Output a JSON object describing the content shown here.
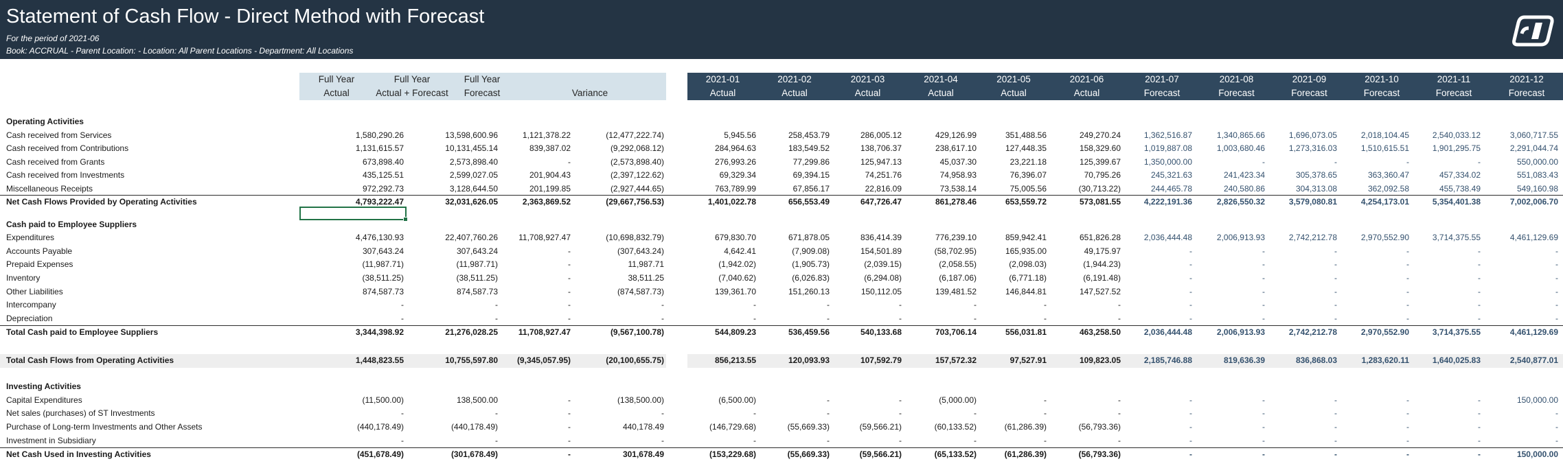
{
  "report": {
    "title": "Statement of Cash Flow - Direct Method with Forecast",
    "period_line": "For the period of 2021-06",
    "filter_line": "Book: ACCRUAL - Parent Location:  - Location: All Parent Locations - Department: All Locations",
    "logo_icon": "company-logo-icon"
  },
  "colors": {
    "banner": "#243444",
    "summary_header": "#d5e2ea",
    "month_header": "#30485e",
    "forecast_text": "#34516e"
  },
  "columns": [
    {
      "top": "Full Year",
      "bottom": "Actual",
      "kind": "summary"
    },
    {
      "top": "Full Year",
      "bottom": "Actual + Forecast",
      "kind": "summary"
    },
    {
      "top": "Full Year",
      "bottom": "Forecast",
      "kind": "summary"
    },
    {
      "top": "",
      "bottom": "Variance",
      "kind": "summary"
    },
    {
      "top": "2021-01",
      "bottom": "Actual",
      "kind": "month"
    },
    {
      "top": "2021-02",
      "bottom": "Actual",
      "kind": "month"
    },
    {
      "top": "2021-03",
      "bottom": "Actual",
      "kind": "month"
    },
    {
      "top": "2021-04",
      "bottom": "Actual",
      "kind": "month"
    },
    {
      "top": "2021-05",
      "bottom": "Actual",
      "kind": "month"
    },
    {
      "top": "2021-06",
      "bottom": "Actual",
      "kind": "month"
    },
    {
      "top": "2021-07",
      "bottom": "Forecast",
      "kind": "month"
    },
    {
      "top": "2021-08",
      "bottom": "Forecast",
      "kind": "month"
    },
    {
      "top": "2021-09",
      "bottom": "Forecast",
      "kind": "month"
    },
    {
      "top": "2021-10",
      "bottom": "Forecast",
      "kind": "month"
    },
    {
      "top": "2021-11",
      "bottom": "Forecast",
      "kind": "month"
    },
    {
      "top": "2021-12",
      "bottom": "Forecast",
      "kind": "month"
    }
  ],
  "rows": [
    {
      "type": "section",
      "label": "Operating Activities"
    },
    {
      "type": "data",
      "label": "Cash received from Services",
      "values": [
        "1,580,290.26",
        "13,598,600.96",
        "1,121,378.22",
        "(12,477,222.74)",
        "5,945.56",
        "258,453.79",
        "286,005.12",
        "429,126.99",
        "351,488.56",
        "249,270.24",
        "1,362,516.87",
        "1,340,865.66",
        "1,696,073.05",
        "2,018,104.45",
        "2,540,033.12",
        "3,060,717.55"
      ]
    },
    {
      "type": "data",
      "label": "Cash received from Contributions",
      "values": [
        "1,131,615.57",
        "10,131,455.14",
        "839,387.02",
        "(9,292,068.12)",
        "284,964.63",
        "183,549.52",
        "138,706.37",
        "238,617.10",
        "127,448.35",
        "158,329.60",
        "1,019,887.08",
        "1,003,680.46",
        "1,273,316.03",
        "1,510,615.51",
        "1,901,295.75",
        "2,291,044.74"
      ]
    },
    {
      "type": "data",
      "label": "Cash received from Grants",
      "values": [
        "673,898.40",
        "2,573,898.40",
        "-",
        "(2,573,898.40)",
        "276,993.26",
        "77,299.86",
        "125,947.13",
        "45,037.30",
        "23,221.18",
        "125,399.67",
        "1,350,000.00",
        "-",
        "-",
        "-",
        "-",
        "550,000.00"
      ]
    },
    {
      "type": "data",
      "label": "Cash received from Investments",
      "values": [
        "435,125.51",
        "2,599,027.05",
        "201,904.43",
        "(2,397,122.62)",
        "69,329.34",
        "69,394.15",
        "74,251.76",
        "74,958.93",
        "76,396.07",
        "70,795.26",
        "245,321.63",
        "241,423.34",
        "305,378.65",
        "363,360.47",
        "457,334.02",
        "551,083.43"
      ]
    },
    {
      "type": "data",
      "label": "Miscellaneous Receipts",
      "values": [
        "972,292.73",
        "3,128,644.50",
        "201,199.85",
        "(2,927,444.65)",
        "763,789.99",
        "67,856.17",
        "22,816.09",
        "73,538.14",
        "75,005.56",
        "(30,713.22)",
        "244,465.78",
        "240,580.86",
        "304,313.08",
        "362,092.58",
        "455,738.49",
        "549,160.98"
      ]
    },
    {
      "type": "total",
      "label": "Net Cash Flows Provided by Operating Activities",
      "values": [
        "4,793,222.47",
        "32,031,626.05",
        "2,363,869.52",
        "(29,667,756.53)",
        "1,401,022.78",
        "656,553.49",
        "647,726.47",
        "861,278.46",
        "653,559.72",
        "573,081.55",
        "4,222,191.36",
        "2,826,550.32",
        "3,579,080.81",
        "4,254,173.01",
        "5,354,401.38",
        "7,002,006.70"
      ]
    },
    {
      "type": "blank"
    },
    {
      "type": "section",
      "label": "Cash paid to Employee Suppliers"
    },
    {
      "type": "data",
      "label": "Expenditures",
      "values": [
        "4,476,130.93",
        "22,407,760.26",
        "11,708,927.47",
        "(10,698,832.79)",
        "679,830.70",
        "671,878.05",
        "836,414.39",
        "776,239.10",
        "859,942.41",
        "651,826.28",
        "2,036,444.48",
        "2,006,913.93",
        "2,742,212.78",
        "2,970,552.90",
        "3,714,375.55",
        "4,461,129.69"
      ]
    },
    {
      "type": "data",
      "label": "Accounts Payable",
      "values": [
        "307,643.24",
        "307,643.24",
        "-",
        "(307,643.24)",
        "4,642.41",
        "(7,909.08)",
        "154,501.89",
        "(58,702.95)",
        "165,935.00",
        "49,175.97",
        "-",
        "-",
        "-",
        "-",
        "-",
        "-"
      ]
    },
    {
      "type": "data",
      "label": "Prepaid Expenses",
      "values": [
        "(11,987.71)",
        "(11,987.71)",
        "-",
        "11,987.71",
        "(1,942.02)",
        "(1,905.73)",
        "(2,039.15)",
        "(2,058.55)",
        "(2,098.03)",
        "(1,944.23)",
        "-",
        "-",
        "-",
        "-",
        "-",
        "-"
      ]
    },
    {
      "type": "data",
      "label": "Inventory",
      "values": [
        "(38,511.25)",
        "(38,511.25)",
        "-",
        "38,511.25",
        "(7,040.62)",
        "(6,026.83)",
        "(6,294.08)",
        "(6,187.06)",
        "(6,771.18)",
        "(6,191.48)",
        "-",
        "-",
        "-",
        "-",
        "-",
        "-"
      ]
    },
    {
      "type": "data",
      "label": "Other Liabilities",
      "values": [
        "874,587.73",
        "874,587.73",
        "-",
        "(874,587.73)",
        "139,361.70",
        "151,260.13",
        "150,112.05",
        "139,481.52",
        "146,844.81",
        "147,527.52",
        "-",
        "-",
        "-",
        "-",
        "-",
        "-"
      ]
    },
    {
      "type": "data",
      "label": "Intercompany",
      "values": [
        "-",
        "-",
        "-",
        "-",
        "-",
        "-",
        "-",
        "-",
        "-",
        "-",
        "-",
        "-",
        "-",
        "-",
        "-",
        "-"
      ]
    },
    {
      "type": "data",
      "label": "Depreciation",
      "values": [
        "-",
        "-",
        "-",
        "-",
        "-",
        "-",
        "-",
        "-",
        "-",
        "-",
        "-",
        "-",
        "-",
        "-",
        "-",
        "-"
      ]
    },
    {
      "type": "total",
      "label": "Total Cash paid to Employee Suppliers",
      "values": [
        "3,344,398.92",
        "21,276,028.25",
        "11,708,927.47",
        "(9,567,100.78)",
        "544,809.23",
        "536,459.56",
        "540,133.68",
        "703,706.14",
        "556,031.81",
        "463,258.50",
        "2,036,444.48",
        "2,006,913.93",
        "2,742,212.78",
        "2,970,552.90",
        "3,714,375.55",
        "4,461,129.69"
      ]
    },
    {
      "type": "blank"
    },
    {
      "type": "grand",
      "label": "Total Cash Flows from Operating Activities",
      "values": [
        "1,448,823.55",
        "10,755,597.80",
        "(9,345,057.95)",
        "(20,100,655.75)",
        "856,213.55",
        "120,093.93",
        "107,592.79",
        "157,572.32",
        "97,527.91",
        "109,823.05",
        "2,185,746.88",
        "819,636.39",
        "836,868.03",
        "1,283,620.11",
        "1,640,025.83",
        "2,540,877.01"
      ]
    },
    {
      "type": "blank"
    },
    {
      "type": "section",
      "label": "Investing Activities"
    },
    {
      "type": "data",
      "label": "Capital Expenditures",
      "values": [
        "(11,500.00)",
        "138,500.00",
        "-",
        "(138,500.00)",
        "(6,500.00)",
        "-",
        "-",
        "(5,000.00)",
        "-",
        "-",
        "-",
        "-",
        "-",
        "-",
        "-",
        "150,000.00"
      ]
    },
    {
      "type": "data",
      "label": "Net sales (purchases) of ST Investments",
      "values": [
        "-",
        "-",
        "-",
        "-",
        "-",
        "-",
        "-",
        "-",
        "-",
        "-",
        "-",
        "-",
        "-",
        "-",
        "-",
        "-"
      ]
    },
    {
      "type": "data",
      "label": "Purchase of Long-term Investments and Other Assets",
      "values": [
        "(440,178.49)",
        "(440,178.49)",
        "-",
        "440,178.49",
        "(146,729.68)",
        "(55,669.33)",
        "(59,566.21)",
        "(60,133.52)",
        "(61,286.39)",
        "(56,793.36)",
        "-",
        "-",
        "-",
        "-",
        "-",
        "-"
      ]
    },
    {
      "type": "data",
      "label": "Investment in Subsidiary",
      "values": [
        "-",
        "-",
        "-",
        "-",
        "-",
        "-",
        "-",
        "-",
        "-",
        "-",
        "-",
        "-",
        "-",
        "-",
        "-",
        "-"
      ]
    },
    {
      "type": "total",
      "label": "Net Cash Used in Investing Activities",
      "values": [
        "(451,678.49)",
        "(301,678.49)",
        "-",
        "301,678.49",
        "(153,229.68)",
        "(55,669.33)",
        "(59,566.21)",
        "(65,133.52)",
        "(61,286.39)",
        "(56,793.36)",
        "-",
        "-",
        "-",
        "-",
        "-",
        "150,000.00"
      ]
    }
  ]
}
